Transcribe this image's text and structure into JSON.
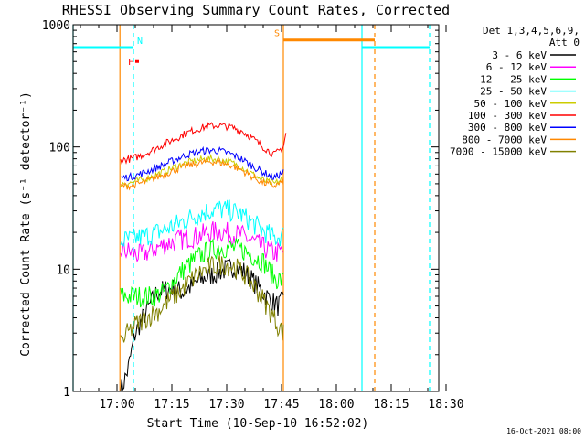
{
  "chart_data": {
    "type": "line",
    "title": "RHESSI Observing Summary Count Rates, Corrected",
    "xlabel": "Start Time (10-Sep-10 16:52:02)",
    "ylabel": "Corrected Count Rate (s⁻¹ detector⁻¹)",
    "y_scale": "log",
    "ylim": [
      1,
      1000
    ],
    "y_ticks": [
      {
        "value": 1,
        "label": "1"
      },
      {
        "value": 10,
        "label": "10"
      },
      {
        "value": 100,
        "label": "100"
      },
      {
        "value": 1000,
        "label": "1000"
      }
    ],
    "xlim_minutes": [
      0,
      100
    ],
    "x_ticks": [
      {
        "minute": 12,
        "label": "17:00"
      },
      {
        "minute": 27,
        "label": "17:15"
      },
      {
        "minute": 42,
        "label": "17:30"
      },
      {
        "minute": 57,
        "label": "17:45"
      },
      {
        "minute": 72,
        "label": "18:00"
      },
      {
        "minute": 87,
        "label": "18:15"
      },
      {
        "minute": 102,
        "label": "18:30"
      }
    ],
    "legend_header": [
      "Det 1,3,4,5,6,9,",
      "Att 0"
    ],
    "legend_position": "right",
    "series": [
      {
        "name": "3 - 6 keV",
        "color": "#000000",
        "x": [
          13,
          15,
          17,
          20,
          23,
          27,
          30,
          33,
          36,
          40,
          44,
          47,
          50,
          53,
          56,
          57.5
        ],
        "y": [
          1,
          1.5,
          3,
          4.5,
          6.5,
          7,
          6.5,
          7.5,
          8.5,
          9.5,
          10.5,
          9.5,
          7.5,
          6,
          5,
          5.5
        ]
      },
      {
        "name": "6 - 12 keV",
        "color": "#ff00ff",
        "x": [
          13,
          15,
          18,
          21,
          25,
          28,
          31,
          34,
          37,
          40,
          43,
          46,
          49,
          52,
          55,
          57.5
        ],
        "y": [
          14,
          14,
          13,
          14,
          16,
          17,
          18,
          18.5,
          20,
          20.5,
          19.5,
          19,
          17,
          15,
          13.5,
          14
        ]
      },
      {
        "name": "12 - 25 keV",
        "color": "#00ff00",
        "x": [
          13,
          16,
          19,
          22,
          25,
          28,
          31,
          34,
          37,
          40,
          43,
          46,
          49,
          52,
          55,
          57.5
        ],
        "y": [
          6,
          6,
          6,
          6,
          6.5,
          8.5,
          10.5,
          12.5,
          14,
          15,
          15,
          14.5,
          13,
          11.5,
          8.5,
          8
        ]
      },
      {
        "name": "25 - 50 keV",
        "color": "#00ffff",
        "x": [
          13,
          16,
          19,
          22,
          25,
          28,
          31,
          34,
          37,
          40,
          43,
          46,
          49,
          52,
          55,
          57.5
        ],
        "y": [
          17,
          17.5,
          18.5,
          19.5,
          21,
          23,
          25.5,
          28,
          30,
          31,
          30,
          28,
          24,
          20.5,
          18,
          19
        ]
      },
      {
        "name": "50 - 100 keV",
        "color": "#cccc00",
        "x": [
          13,
          16,
          19,
          22,
          25,
          28,
          31,
          34,
          37,
          40,
          43,
          46,
          49,
          52,
          55,
          57.5
        ],
        "y": [
          50,
          51,
          54,
          58,
          63,
          69,
          74,
          78,
          80,
          79,
          75,
          69,
          60,
          53,
          50,
          55
        ]
      },
      {
        "name": "100 - 300 keV",
        "color": "#ff0000",
        "x": [
          13,
          16,
          19,
          22,
          25,
          28,
          31,
          34,
          37,
          40,
          43,
          46,
          49,
          52,
          55,
          57.5,
          58.2
        ],
        "y": [
          78,
          80,
          86,
          95,
          106,
          117,
          130,
          140,
          148,
          150,
          146,
          136,
          118,
          100,
          86,
          100,
          130
        ]
      },
      {
        "name": "300 - 800 keV",
        "color": "#0000ff",
        "x": [
          13,
          16,
          19,
          22,
          25,
          28,
          31,
          34,
          37,
          40,
          43,
          46,
          49,
          52,
          55,
          57.5
        ],
        "y": [
          56,
          57,
          61,
          66,
          72,
          79,
          86,
          91,
          94,
          93,
          88,
          80,
          70,
          62,
          56,
          62
        ]
      },
      {
        "name": "800 - 7000 keV",
        "color": "#ff8800",
        "x": [
          13,
          16,
          19,
          22,
          25,
          28,
          31,
          34,
          37,
          40,
          43,
          46,
          49,
          52,
          55,
          57.5
        ],
        "y": [
          48,
          48,
          51,
          55,
          60,
          65,
          70,
          73,
          76,
          75,
          71,
          65,
          57,
          51,
          48,
          52
        ]
      },
      {
        "name": "7000 - 15000 keV",
        "color": "#808000",
        "x": [
          13,
          15,
          17,
          20,
          23,
          26,
          29,
          32,
          35,
          38,
          41,
          44,
          47,
          50,
          53,
          56,
          57.5
        ],
        "y": [
          2.5,
          3,
          3.5,
          4,
          4.5,
          5.5,
          6.5,
          8,
          9.5,
          10.5,
          11,
          10.5,
          9,
          7,
          5,
          3.5,
          3
        ]
      }
    ],
    "annotations": {
      "bars": [
        {
          "label": "N",
          "color": "#00ffff",
          "x_start": 0,
          "x_end": 16.5,
          "y": 650
        },
        {
          "label": "S",
          "color": "#ff8800",
          "x_start": 57.5,
          "x_end": 82.5,
          "y": 750
        },
        {
          "label": "",
          "color": "#00ffff",
          "x_start": 79,
          "x_end": 97.5,
          "y": 650
        },
        {
          "label": "F",
          "color": "#ff0000",
          "x_start": 17,
          "x_end": 18,
          "y": 500
        }
      ],
      "vlines": [
        {
          "x": 0,
          "color": "#00ffff",
          "style": "solid"
        },
        {
          "x": 16.5,
          "color": "#00ffff",
          "style": "dashed"
        },
        {
          "x": 12.8,
          "color": "#ff8800",
          "style": "solid"
        },
        {
          "x": 57.5,
          "color": "#ff8800",
          "style": "solid"
        },
        {
          "x": 79,
          "color": "#00ffff",
          "style": "solid"
        },
        {
          "x": 82.5,
          "color": "#ff8800",
          "style": "dashed"
        },
        {
          "x": 97.5,
          "color": "#00ffff",
          "style": "dashed"
        }
      ]
    }
  },
  "footer": "16-Oct-2021 08:00"
}
